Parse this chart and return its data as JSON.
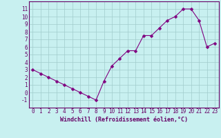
{
  "x": [
    0,
    1,
    2,
    3,
    4,
    5,
    6,
    7,
    8,
    9,
    10,
    11,
    12,
    13,
    14,
    15,
    16,
    17,
    18,
    19,
    20,
    21,
    22,
    23
  ],
  "y": [
    3,
    2.5,
    2,
    1.5,
    1,
    0.5,
    0,
    -0.5,
    -1,
    1.5,
    3.5,
    4.5,
    5.5,
    5.5,
    7.5,
    7.5,
    8.5,
    9.5,
    10,
    11,
    11,
    9.5,
    6,
    6.5
  ],
  "line_color": "#800080",
  "marker": "D",
  "marker_size": 2.5,
  "bg_color": "#c8f0f0",
  "grid_color": "#a0cccc",
  "xlabel": "Windchill (Refroidissement éolien,°C)",
  "ylim": [
    -2,
    12
  ],
  "xlim": [
    -0.5,
    23.5
  ],
  "yticks": [
    -1,
    0,
    1,
    2,
    3,
    4,
    5,
    6,
    7,
    8,
    9,
    10,
    11
  ],
  "xticks": [
    0,
    1,
    2,
    3,
    4,
    5,
    6,
    7,
    8,
    9,
    10,
    11,
    12,
    13,
    14,
    15,
    16,
    17,
    18,
    19,
    20,
    21,
    22,
    23
  ],
  "font_color": "#660066",
  "tick_fontsize": 5.5,
  "xlabel_fontsize": 6.0
}
